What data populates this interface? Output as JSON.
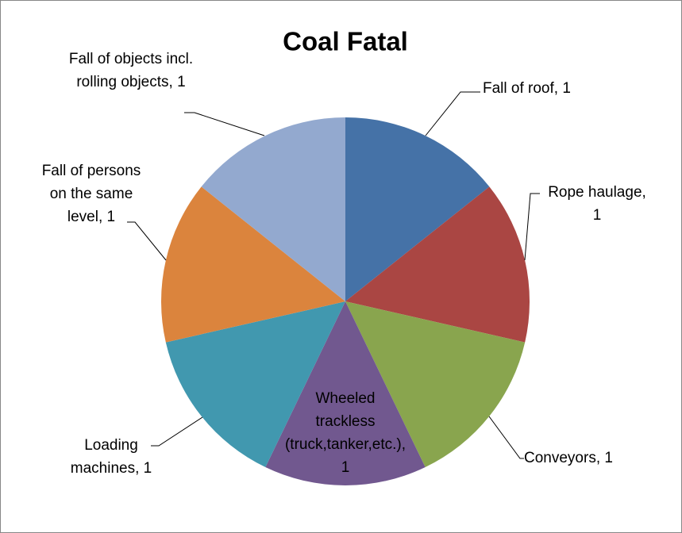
{
  "chart_data": {
    "type": "pie",
    "title": "Coal Fatal",
    "labels": [
      "Fall of roof, 1",
      "Rope haulage, 1",
      "Conveyors, 1",
      "Wheeled trackless (truck,tanker,etc.), 1",
      "Loading machines, 1",
      "Fall of persons on the same level, 1",
      "Fall of objects incl. rolling objects, 1"
    ],
    "values": [
      1,
      1,
      1,
      1,
      1,
      1,
      1
    ],
    "colors": [
      "#4572a7",
      "#aa4643",
      "#89a54e",
      "#71588f",
      "#4198af",
      "#db843d",
      "#93a9cf"
    ]
  }
}
